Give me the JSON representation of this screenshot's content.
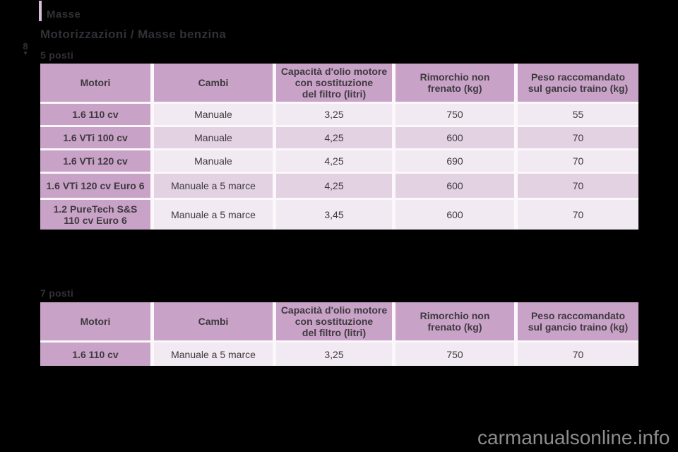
{
  "page": {
    "header_tab": "Masse",
    "title": "Motorizzazioni / Masse benzina",
    "margin_marker": "8",
    "watermark": "carmanualsonline.info"
  },
  "colors": {
    "page-bg": "#000000",
    "accent-bar": "#dcbcdc",
    "heading-text": "#333036",
    "table-header": "#c9a2c8",
    "row-light": "#f2eaf2",
    "row-dark": "#e3d2e2",
    "gap": "#fbf7fa",
    "cell-text": "#3e3a3e",
    "watermark": "#8d8d8d"
  },
  "tables": [
    {
      "caption": "5 posti",
      "headers": [
        "Motori",
        "Cambi",
        "Capacità d'olio motore\ncon sostituzione\ndel filtro (litri)",
        "Rimorchio non\nfrenato (kg)",
        "Peso raccomandato\nsul gancio traino (kg)"
      ],
      "rows": [
        [
          "1.6 110 cv",
          "Manuale",
          "3,25",
          "750",
          "55"
        ],
        [
          "1.6 VTi 100 cv",
          "Manuale",
          "4,25",
          "600",
          "70"
        ],
        [
          "1.6 VTi 120 cv",
          "Manuale",
          "4,25",
          "690",
          "70"
        ],
        [
          "1.6 VTi 120 cv Euro 6",
          "Manuale a 5 marce",
          "4,25",
          "600",
          "70"
        ],
        [
          "1.2 PureTech S&S\n110 cv Euro 6",
          "Manuale a 5 marce",
          "3,45",
          "600",
          "70"
        ]
      ]
    },
    {
      "caption": "7 posti",
      "headers": [
        "Motori",
        "Cambi",
        "Capacità d'olio motore\ncon sostituzione\ndel filtro (litri)",
        "Rimorchio non\nfrenato (kg)",
        "Peso raccomandato\nsul gancio traino (kg)"
      ],
      "rows": [
        [
          "1.6 110 cv",
          "Manuale a 5 marce",
          "3,25",
          "750",
          "70"
        ]
      ]
    }
  ]
}
